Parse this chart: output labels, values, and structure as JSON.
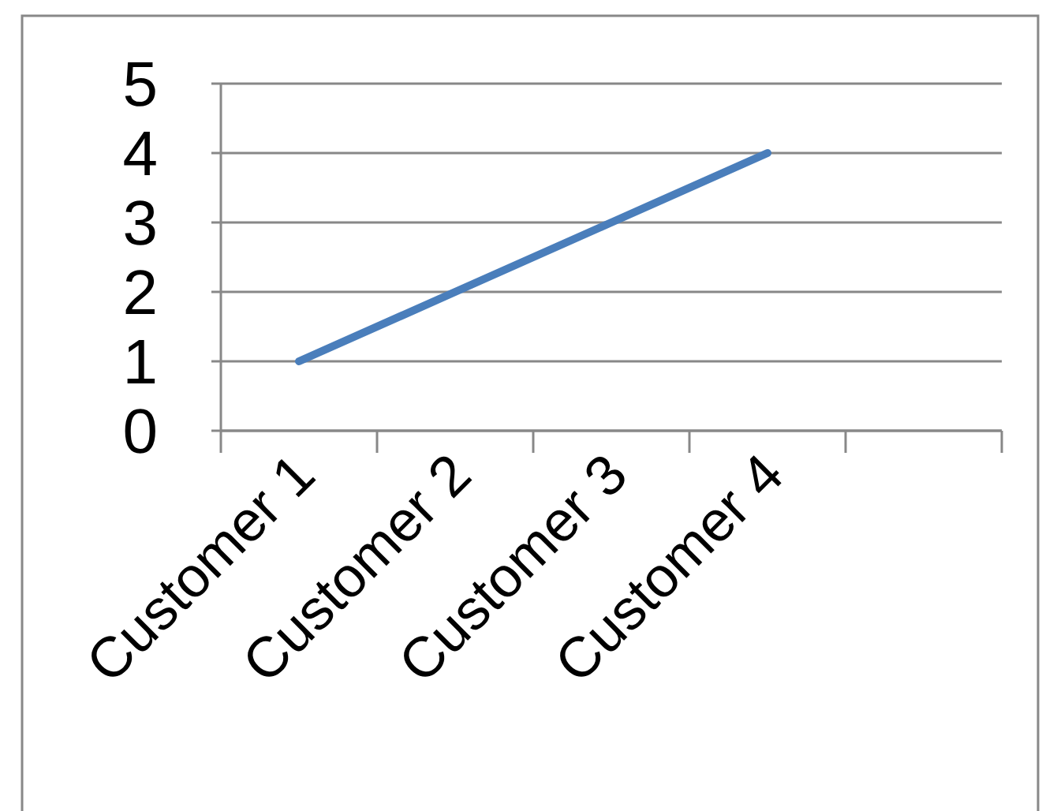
{
  "chart_data": {
    "type": "line",
    "categories": [
      "Customer 1",
      "Customer 2",
      "Customer 3",
      "Customer 4",
      null
    ],
    "series": [
      {
        "color": "#4a7ebb",
        "values": [
          1,
          2,
          3,
          4,
          null
        ]
      }
    ],
    "ylim": [
      0,
      5
    ],
    "yticks": [
      0,
      1,
      2,
      3,
      4,
      5
    ],
    "grid": "y",
    "marker": "none",
    "line_style": "solid"
  }
}
